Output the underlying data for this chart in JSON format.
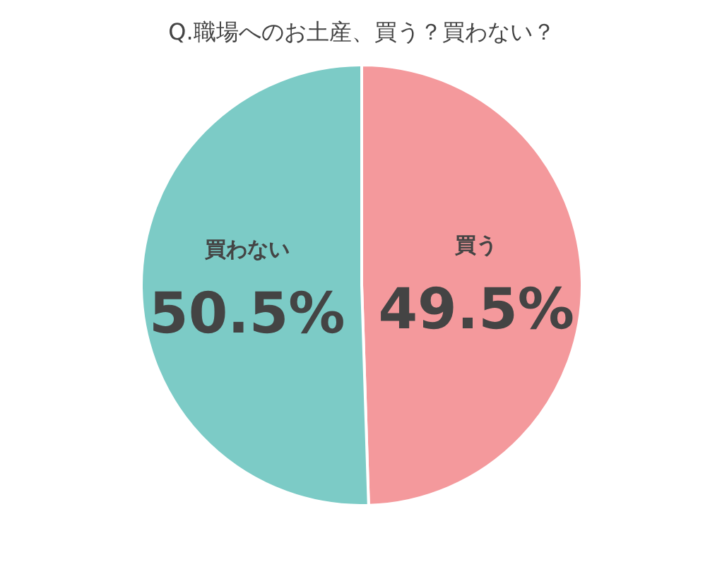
{
  "chart_data": {
    "type": "pie",
    "title": "Q.職場へのお土産、買う？買わない？",
    "categories": [
      "買う",
      "買わない"
    ],
    "values": [
      49.5,
      50.5
    ],
    "colors": [
      "#f4999c",
      "#7ccbc6"
    ],
    "value_labels": [
      "49.5%",
      "50.5%"
    ],
    "legend": false
  }
}
